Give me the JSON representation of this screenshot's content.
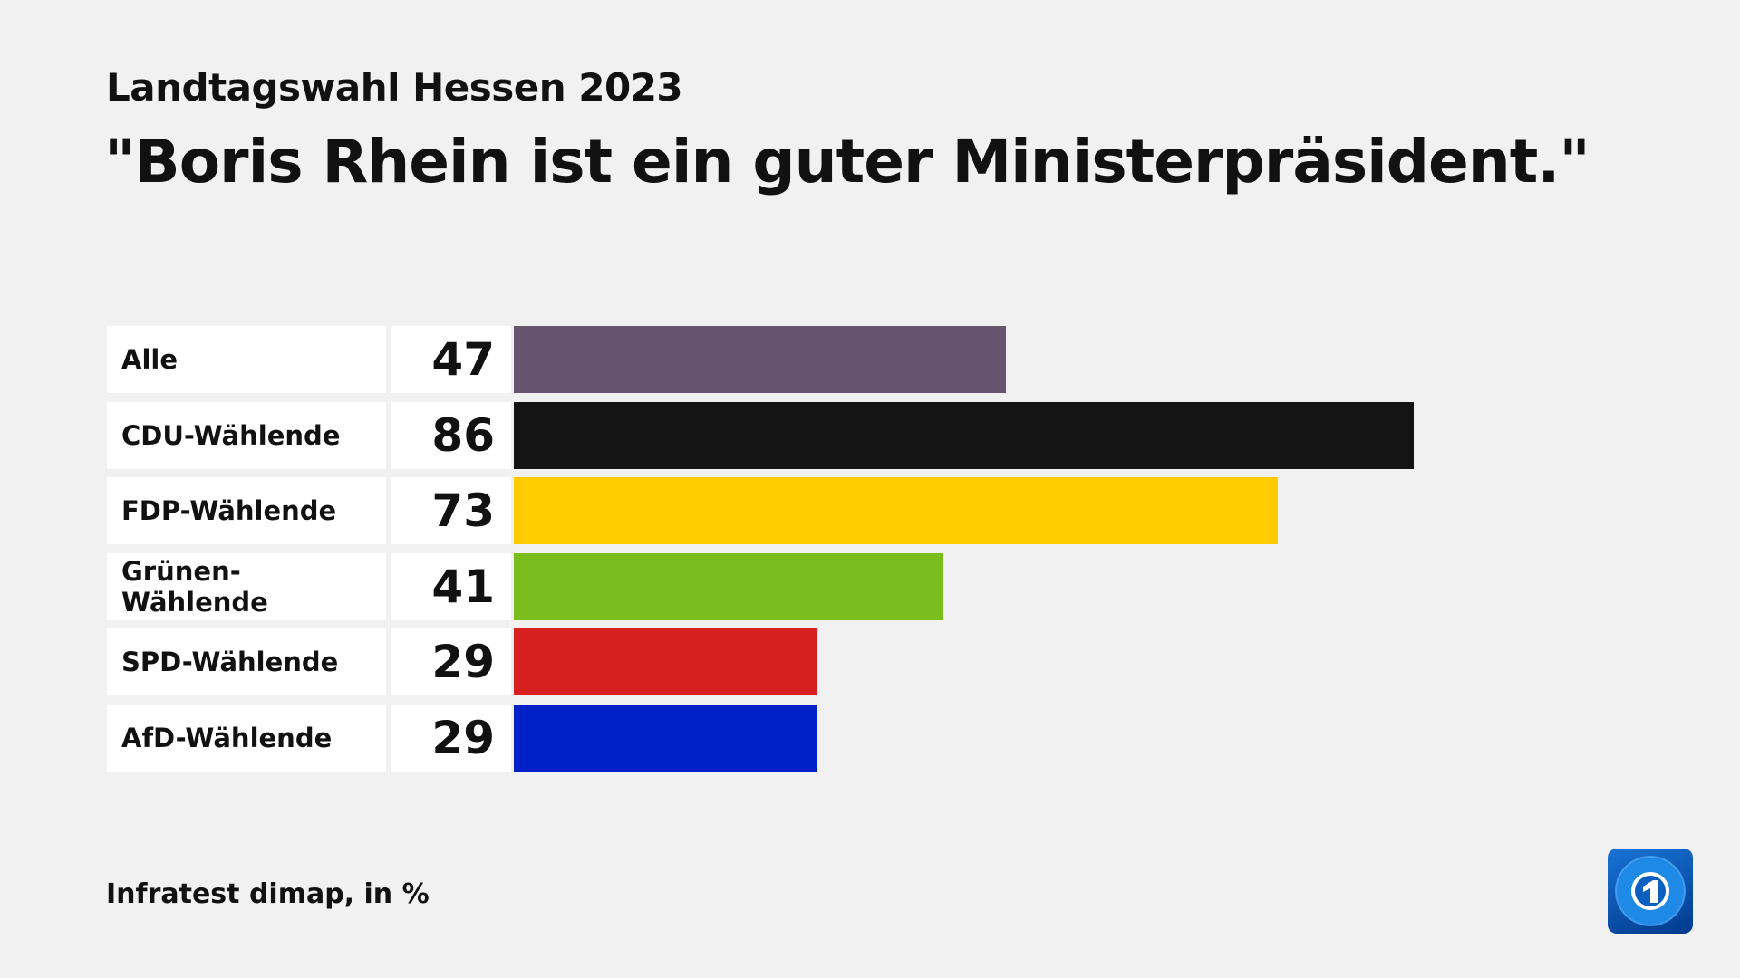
{
  "chart_data": {
    "type": "bar",
    "orientation": "horizontal",
    "subtitle": "Landtagswahl Hessen 2023",
    "title": "\"Boris Rhein ist ein guter Ministerpräsident.\"",
    "categories": [
      "Alle",
      "CDU-Wählende",
      "FDP-Wählende",
      "Grünen-Wählende",
      "SPD-Wählende",
      "AfD-Wählende"
    ],
    "values": [
      47,
      86,
      73,
      41,
      29,
      29
    ],
    "colors": [
      "#67546f",
      "#141414",
      "#ffcc00",
      "#7abe1e",
      "#d62020",
      "#0020c8"
    ],
    "xlim": [
      0,
      86
    ],
    "grid": false,
    "source": "Infratest dimap, in %"
  },
  "logo": {
    "name": "tagesschau-logo-icon",
    "text": "1"
  }
}
